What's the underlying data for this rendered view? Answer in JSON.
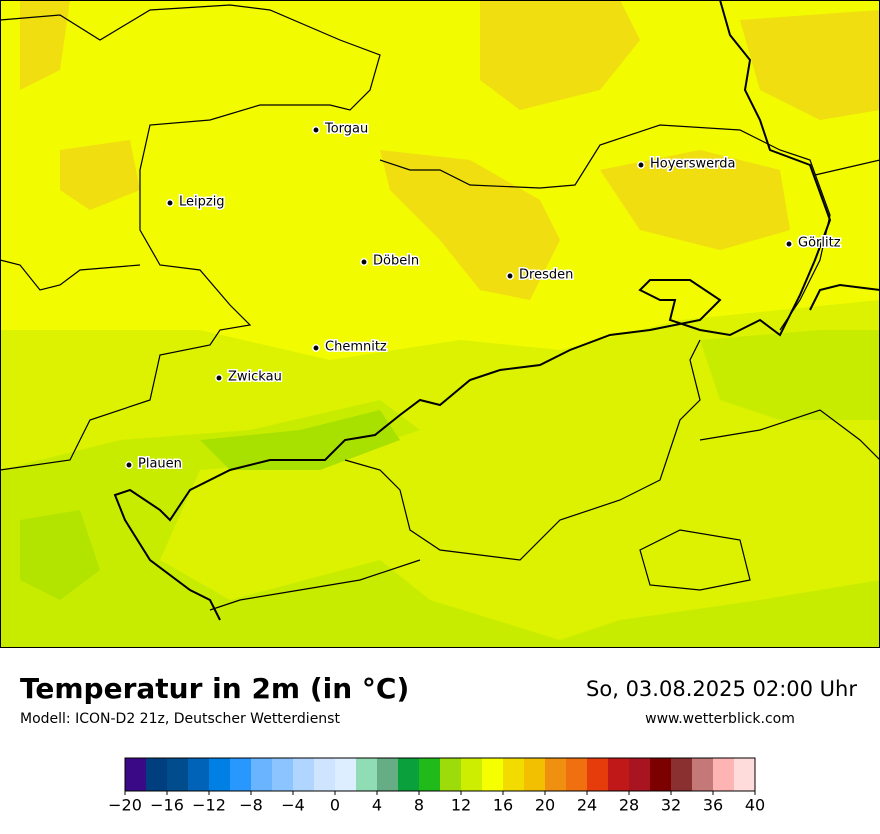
{
  "header": {
    "title": "Temperatur in 2m (in °C)",
    "subtitle": "Modell: ICON-D2 21z, Deutscher Wetterdienst",
    "date": "So, 03.08.2025 02:00 Uhr",
    "website": "www.wetterblick.com"
  },
  "map": {
    "cities": [
      "Torgau",
      "Leipzig",
      "Döbeln",
      "Dresden",
      "Hoyerswerda",
      "Görlitz",
      "Chemnitz",
      "Zwickau",
      "Plauen"
    ]
  },
  "colorbar": {
    "lim": [
      -20,
      40
    ],
    "colors": [
      "#3a0a86",
      "#003f7f",
      "#004c8c",
      "#0063b8",
      "#0080e5",
      "#2898ff",
      "#6ab4ff",
      "#8cc4ff",
      "#b0d6ff",
      "#cfe4ff",
      "#dceeff",
      "#90dcb5",
      "#66ad86",
      "#0aa03c",
      "#20bb1a",
      "#9ddc0a",
      "#cdee00",
      "#f5ff00",
      "#f2dc00",
      "#f2c000",
      "#f09010",
      "#f07010",
      "#e63c0c",
      "#c01818",
      "#a81420",
      "#7c0000",
      "#8a3030",
      "#c47878",
      "#ffb4b4",
      "#ffdcdc"
    ],
    "ticks": [
      {
        "value": -20,
        "label": "−20"
      },
      {
        "value": -16,
        "label": "−16"
      },
      {
        "value": -12,
        "label": "−12"
      },
      {
        "value": -8,
        "label": "−8"
      },
      {
        "value": -4,
        "label": "−4"
      },
      0,
      4,
      8,
      12,
      16,
      20,
      24,
      28,
      32,
      36,
      40
    ]
  }
}
